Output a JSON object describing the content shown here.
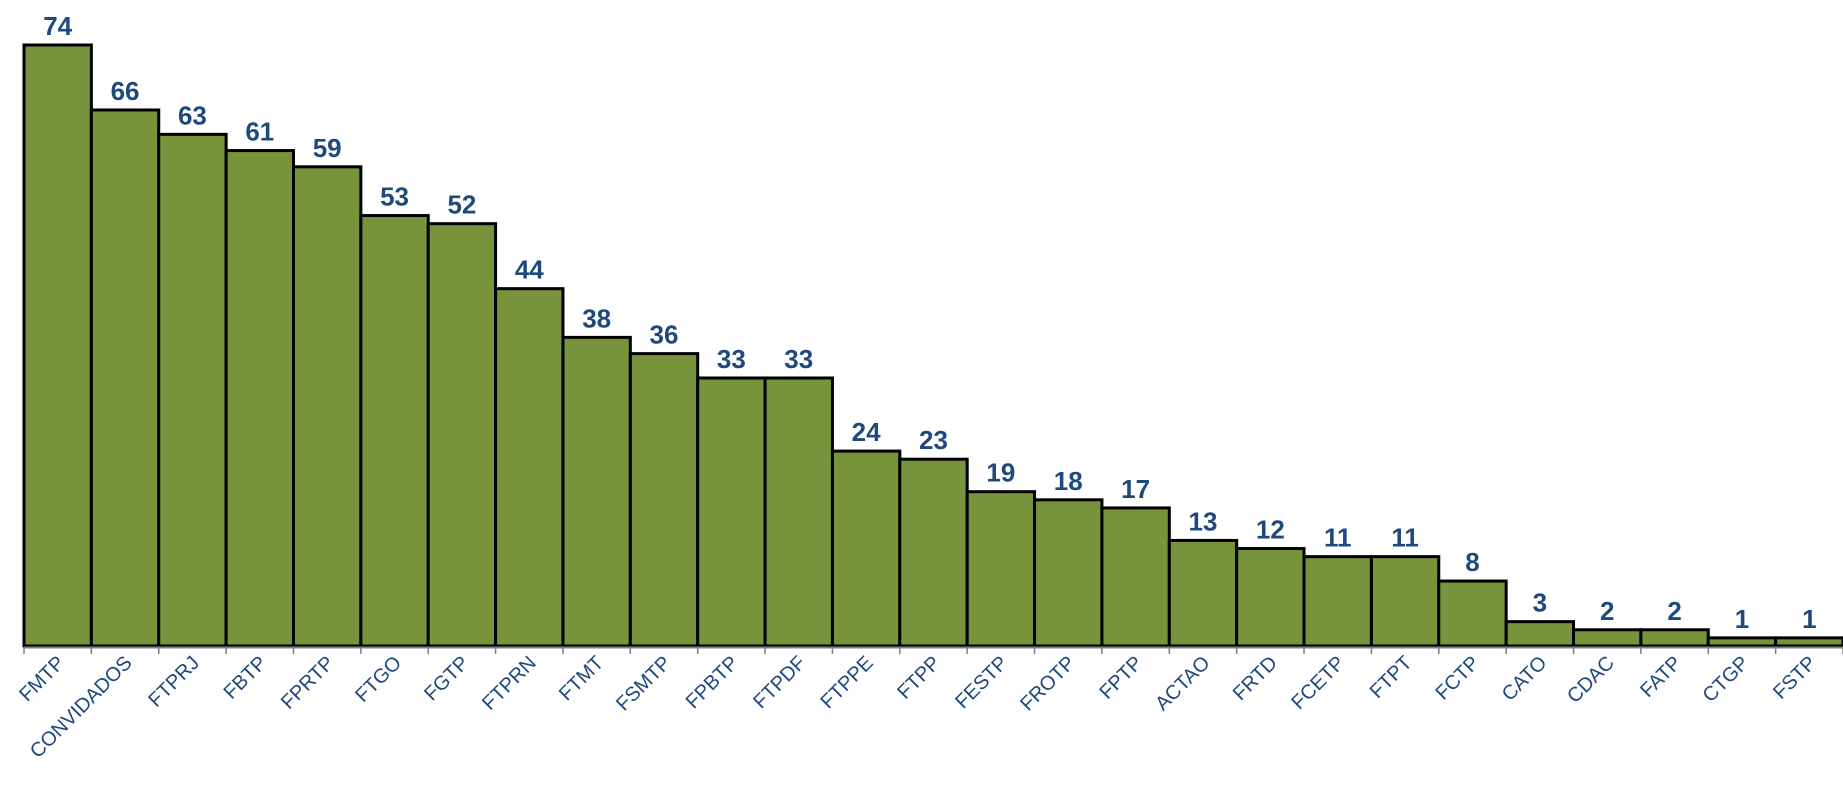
{
  "chart_data": {
    "type": "bar",
    "categories": [
      "FMTP",
      "CONVIDADOS",
      "FTPRJ",
      "FBTP",
      "FPRTP",
      "FTGO",
      "FGTP",
      "FTPRN",
      "FTMT",
      "FSMTP",
      "FPBTP",
      "FTPDF",
      "FTPPE",
      "FTPP",
      "FESTP",
      "FROTP",
      "FPTP",
      "ACTAO",
      "FRTD",
      "FCETP",
      "FTPT",
      "FCTP",
      "CATO",
      "CDAC",
      "FATP",
      "CTGP",
      "FSTP"
    ],
    "values": [
      74,
      66,
      63,
      61,
      59,
      53,
      52,
      44,
      38,
      36,
      33,
      33,
      24,
      23,
      19,
      18,
      17,
      13,
      12,
      11,
      11,
      8,
      3,
      2,
      2,
      1,
      1
    ],
    "ylim": [
      0,
      74
    ],
    "grid": false,
    "legend": "none",
    "bar_color": "#77933c",
    "bar_border_color": "#000000",
    "label_color": "#1f497d",
    "axis_color": "#7f7f7f"
  }
}
